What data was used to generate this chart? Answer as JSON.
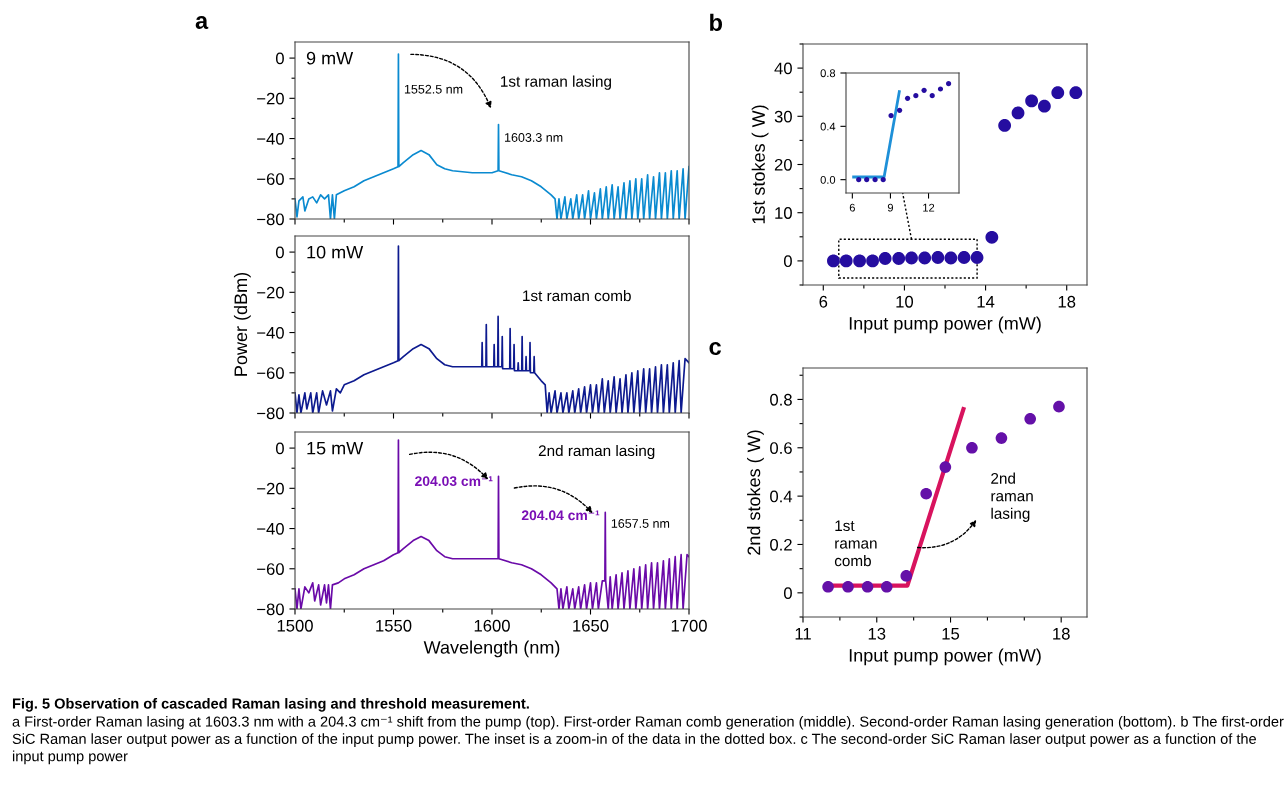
{
  "chart_data": [
    {
      "type": "line",
      "title": "a",
      "xlim": [
        1500,
        1700
      ],
      "ylim": [
        -80,
        8
      ],
      "xticks": [
        1500,
        1550,
        1600,
        1650,
        1700
      ],
      "yticks": [
        -80,
        -60,
        -40,
        -20,
        0
      ],
      "tick_labels": "y",
      "series": [
        {
          "color": "#0a8ad0",
          "x": [
            1500,
            1501,
            1502,
            1504,
            1505,
            1507,
            1509,
            1511,
            1513,
            1515,
            1517,
            1518,
            1519,
            1520,
            1521,
            1525,
            1530,
            1535,
            1540,
            1545,
            1550,
            1552.3,
            1552.5,
            1552.7,
            1555,
            1560,
            1564,
            1568,
            1572,
            1576,
            1580,
            1590,
            1600,
            1603.1,
            1603.3,
            1603.5,
            1610,
            1615,
            1620,
            1625,
            1630,
            1632,
            1633,
            1634,
            1635,
            1637,
            1638,
            1640,
            1641,
            1643,
            1644,
            1646,
            1647,
            1649,
            1650,
            1652,
            1653,
            1655,
            1656,
            1658,
            1659,
            1661,
            1662,
            1664,
            1665,
            1667,
            1668,
            1670,
            1671,
            1673,
            1674,
            1676,
            1677,
            1679,
            1680,
            1682,
            1683,
            1685,
            1686,
            1688,
            1689,
            1691,
            1692,
            1694,
            1695,
            1697,
            1698,
            1700
          ],
          "values": [
            -70,
            -79,
            -71,
            -69,
            -76,
            -70,
            -69,
            -72,
            -68,
            -70,
            -68,
            -80,
            -68,
            -80,
            -68,
            -66,
            -64,
            -61,
            -59,
            -57,
            -55,
            -54,
            2,
            -54,
            -52,
            -48,
            -46,
            -48,
            -53,
            -55,
            -56,
            -57,
            -57,
            -56,
            -33,
            -56,
            -58,
            -59,
            -61,
            -64,
            -68,
            -70,
            -80,
            -70,
            -80,
            -69,
            -80,
            -70,
            -80,
            -68,
            -80,
            -68,
            -80,
            -66,
            -80,
            -67,
            -80,
            -65,
            -80,
            -64,
            -80,
            -63,
            -80,
            -64,
            -80,
            -62,
            -80,
            -61,
            -80,
            -60,
            -80,
            -60,
            -80,
            -58,
            -80,
            -59,
            -80,
            -57,
            -80,
            -57,
            -80,
            -56,
            -80,
            -56,
            -80,
            -55,
            -80,
            -54
          ]
        }
      ],
      "annotations": [
        "9 mW",
        {
          "text": "1552.5 nm",
          "x": 1552.5,
          "y": -16
        },
        {
          "text": "1603.3 nm",
          "x": 1603.3,
          "y": -40
        },
        "1st raman lasing"
      ]
    },
    {
      "type": "line",
      "ylabel": "Power (dBm)",
      "xlim": [
        1500,
        1700
      ],
      "ylim": [
        -80,
        8
      ],
      "xticks": [
        1500,
        1550,
        1600,
        1650,
        1700
      ],
      "yticks": [
        -80,
        -60,
        -40,
        -20,
        0
      ],
      "tick_labels": "y",
      "series": [
        {
          "color": "#0d1a8f",
          "x": [
            1500,
            1501,
            1502,
            1503,
            1505,
            1506,
            1508,
            1509,
            1511,
            1512,
            1514,
            1516,
            1518,
            1519,
            1521,
            1523,
            1525,
            1530,
            1535,
            1540,
            1545,
            1550,
            1552.3,
            1552.5,
            1552.7,
            1555,
            1560,
            1564,
            1568,
            1572,
            1576,
            1580,
            1590,
            1594.8,
            1595,
            1595.2,
            1596.9,
            1597.1,
            1597.3,
            1600.9,
            1601.1,
            1601.3,
            1602.9,
            1603.1,
            1603.3,
            1605,
            1605.2,
            1605.4,
            1609,
            1609.2,
            1609.4,
            1611,
            1611.2,
            1611.4,
            1613.1,
            1613.3,
            1613.5,
            1615.1,
            1615.3,
            1615.5,
            1617.1,
            1617.3,
            1617.5,
            1619.1,
            1619.3,
            1619.5,
            1621.2,
            1621.4,
            1621.6,
            1625,
            1627,
            1628,
            1629,
            1630,
            1632,
            1633,
            1635,
            1636,
            1638,
            1639,
            1641,
            1642,
            1644,
            1645,
            1647,
            1648,
            1650,
            1651,
            1653,
            1654,
            1656,
            1657,
            1659,
            1660,
            1662,
            1663,
            1665,
            1666,
            1668,
            1669,
            1671,
            1672,
            1674,
            1675,
            1677,
            1678,
            1680,
            1681,
            1683,
            1684,
            1686,
            1687,
            1689,
            1690,
            1692,
            1693,
            1695,
            1696,
            1698,
            1700
          ],
          "values": [
            -70,
            -80,
            -71,
            -80,
            -70,
            -78,
            -70,
            -80,
            -70,
            -80,
            -69,
            -76,
            -69,
            -79,
            -68,
            -70,
            -66,
            -64,
            -61,
            -59,
            -57,
            -55,
            -54,
            3,
            -54,
            -52,
            -48,
            -46,
            -48,
            -53,
            -56,
            -57,
            -57,
            -57,
            -45,
            -57,
            -57,
            -36,
            -57,
            -57,
            -46,
            -57,
            -57,
            -32,
            -57,
            -57,
            -42,
            -58,
            -58,
            -38,
            -58,
            -58,
            -46,
            -59,
            -59,
            -55,
            -59,
            -59,
            -42,
            -59,
            -59,
            -52,
            -59,
            -59,
            -45,
            -60,
            -60,
            -52,
            -60,
            -64,
            -66,
            -80,
            -70,
            -80,
            -69,
            -80,
            -70,
            -80,
            -70,
            -80,
            -69,
            -80,
            -68,
            -80,
            -67,
            -80,
            -66,
            -80,
            -66,
            -80,
            -63,
            -80,
            -64,
            -80,
            -62,
            -80,
            -63,
            -80,
            -61,
            -80,
            -60,
            -80,
            -59,
            -80,
            -58,
            -80,
            -58,
            -80,
            -57,
            -80,
            -56,
            -80,
            -56,
            -80,
            -55,
            -80,
            -54,
            -80,
            -53,
            -55
          ]
        }
      ],
      "annotations": [
        "10 mW",
        "1st raman comb"
      ]
    },
    {
      "type": "line",
      "xlabel": "Wavelength (nm)",
      "xlim": [
        1500,
        1700
      ],
      "ylim": [
        -80,
        8
      ],
      "xticks": [
        1500,
        1550,
        1600,
        1650,
        1700
      ],
      "yticks": [
        -80,
        -60,
        -40,
        -20,
        0
      ],
      "series": [
        {
          "color": "#6a0aa8",
          "x": [
            1500,
            1501,
            1502,
            1503,
            1505,
            1507,
            1509,
            1510,
            1512,
            1513,
            1515,
            1516,
            1517,
            1518,
            1519,
            1522,
            1525,
            1530,
            1535,
            1540,
            1545,
            1550,
            1552.3,
            1552.5,
            1552.7,
            1555,
            1560,
            1564,
            1568,
            1572,
            1576,
            1580,
            1590,
            1600,
            1603.1,
            1603.3,
            1603.5,
            1610,
            1615,
            1620,
            1625,
            1630,
            1633,
            1634,
            1635,
            1636,
            1638,
            1639,
            1641,
            1642,
            1644,
            1645,
            1647,
            1648,
            1650,
            1651,
            1653,
            1654,
            1656,
            1657.3,
            1657.5,
            1657.7,
            1659,
            1660,
            1661,
            1663,
            1664,
            1666,
            1667,
            1669,
            1670,
            1672,
            1673,
            1675,
            1676,
            1678,
            1679,
            1681,
            1682,
            1684,
            1685,
            1687,
            1688,
            1690,
            1691,
            1693,
            1694,
            1696,
            1697,
            1699,
            1700
          ],
          "values": [
            -70,
            -80,
            -70,
            -80,
            -69,
            -72,
            -67,
            -76,
            -68,
            -78,
            -68,
            -77,
            -68,
            -80,
            -68,
            -67,
            -65,
            -63,
            -60,
            -58,
            -56,
            -53,
            -52,
            4,
            -52,
            -50,
            -46,
            -44,
            -46,
            -51,
            -54,
            -55,
            -55,
            -55,
            -55,
            -14,
            -55,
            -57,
            -58,
            -60,
            -63,
            -67,
            -70,
            -80,
            -70,
            -80,
            -69,
            -80,
            -70,
            -80,
            -69,
            -80,
            -68,
            -80,
            -67,
            -80,
            -67,
            -80,
            -66,
            -66,
            -32,
            -66,
            -80,
            -64,
            -80,
            -63,
            -80,
            -62,
            -80,
            -61,
            -80,
            -60,
            -80,
            -59,
            -80,
            -58,
            -80,
            -57,
            -80,
            -57,
            -80,
            -56,
            -80,
            -55,
            -80,
            -54,
            -80,
            -53,
            -80,
            -53,
            -54
          ]
        }
      ],
      "annotations": [
        "15 mW",
        {
          "text": "204.03 cm⁻¹",
          "x": 1603.3,
          "y": -17
        },
        "2nd raman lasing",
        {
          "text": "204.04 cm⁻¹",
          "x": 1657.5,
          "y": -34
        },
        {
          "text": "1657.5 nm",
          "x": 1657.5,
          "y": -38
        }
      ]
    },
    {
      "type": "scatter",
      "title": "b",
      "xlabel": "Input pump power (mW)",
      "ylabel": "1st stokes ( W)",
      "xlim": [
        5,
        19
      ],
      "ylim": [
        -5,
        45
      ],
      "xticks": [
        6,
        10,
        14,
        18
      ],
      "yticks": [
        0,
        10,
        20,
        30,
        40
      ],
      "series": [
        {
          "color": "#250da0",
          "marker": "circle",
          "x": [
            6.5,
            7.13,
            7.79,
            8.43,
            9.05,
            9.72,
            10.35,
            11.0,
            11.65,
            12.29,
            12.94,
            13.58,
            14.31,
            14.94,
            15.6,
            16.27,
            16.9,
            17.56,
            18.45
          ],
          "values": [
            0,
            0,
            0,
            0,
            0.5,
            0.5,
            0.6,
            0.6,
            0.7,
            0.6,
            0.7,
            0.7,
            4.9,
            28.1,
            30.7,
            33.2,
            32.1,
            34.9,
            34.9
          ]
        }
      ]
    },
    {
      "type": "scatter",
      "xlim": [
        5.5,
        14.4
      ],
      "ylim": [
        -0.1,
        0.8
      ],
      "xticks": [
        6,
        9,
        12
      ],
      "yticks": [
        {
          "value": 0,
          "label": "0.0"
        },
        0.4,
        0.8
      ],
      "series": [
        {
          "color": "#250da0",
          "marker": "circle",
          "x": [
            6.5,
            7.13,
            7.79,
            8.43,
            9.05,
            9.72,
            10.35,
            11.0,
            11.65,
            12.29,
            12.94,
            13.58
          ],
          "values": [
            0,
            0,
            0,
            0,
            0.48,
            0.52,
            0.61,
            0.63,
            0.67,
            0.63,
            0.68,
            0.72
          ]
        },
        {
          "type": "line",
          "color": "#1e90d8",
          "x": [
            6.1,
            8.5,
            9.7
          ],
          "values": [
            0.02,
            0.02,
            0.66
          ]
        }
      ]
    },
    {
      "type": "scatter",
      "title": "c",
      "xlabel": "Input pump power (mW)",
      "ylabel": "2nd stokes ( W)",
      "xlim": [
        11,
        18.7
      ],
      "ylim": [
        -0.1,
        0.93
      ],
      "xticks": [
        11,
        13,
        15,
        18
      ],
      "yticks": [
        0,
        0.2,
        0.4,
        0.6,
        0.8
      ],
      "series": [
        {
          "color": "#6410a8",
          "marker": "circle",
          "x": [
            11.68,
            12.22,
            12.75,
            13.27,
            13.8,
            14.34,
            14.86,
            15.58,
            16.38,
            17.16,
            17.94
          ],
          "values": [
            0.025,
            0.025,
            0.025,
            0.025,
            0.07,
            0.41,
            0.52,
            0.6,
            0.64,
            0.72,
            0.77
          ]
        },
        {
          "type": "line",
          "color": "#d8135e",
          "x": [
            11.7,
            13.83,
            15.35
          ],
          "values": [
            0.03,
            0.03,
            0.76
          ]
        }
      ],
      "annotations": [
        "1st\nraman\ncomb",
        "2nd\nraman\nlasing"
      ]
    },
    {
      "type": "other",
      "annotations": [
        "Fig. 5 Observation of cascaded Raman lasing and threshold measurement.",
        "a First-order Raman lasing at 1603.3 nm with a 204.3 cm⁻¹ shift from the pump (top). First-order Raman comb generation (middle). Second-order Raman lasing generation (bottom). b The first-order SiC Raman laser output power as a function of the input pump power. The inset is a zoom-in of the data in the dotted box. c The second-order SiC Raman laser output power as a function of the input pump power"
      ]
    }
  ]
}
